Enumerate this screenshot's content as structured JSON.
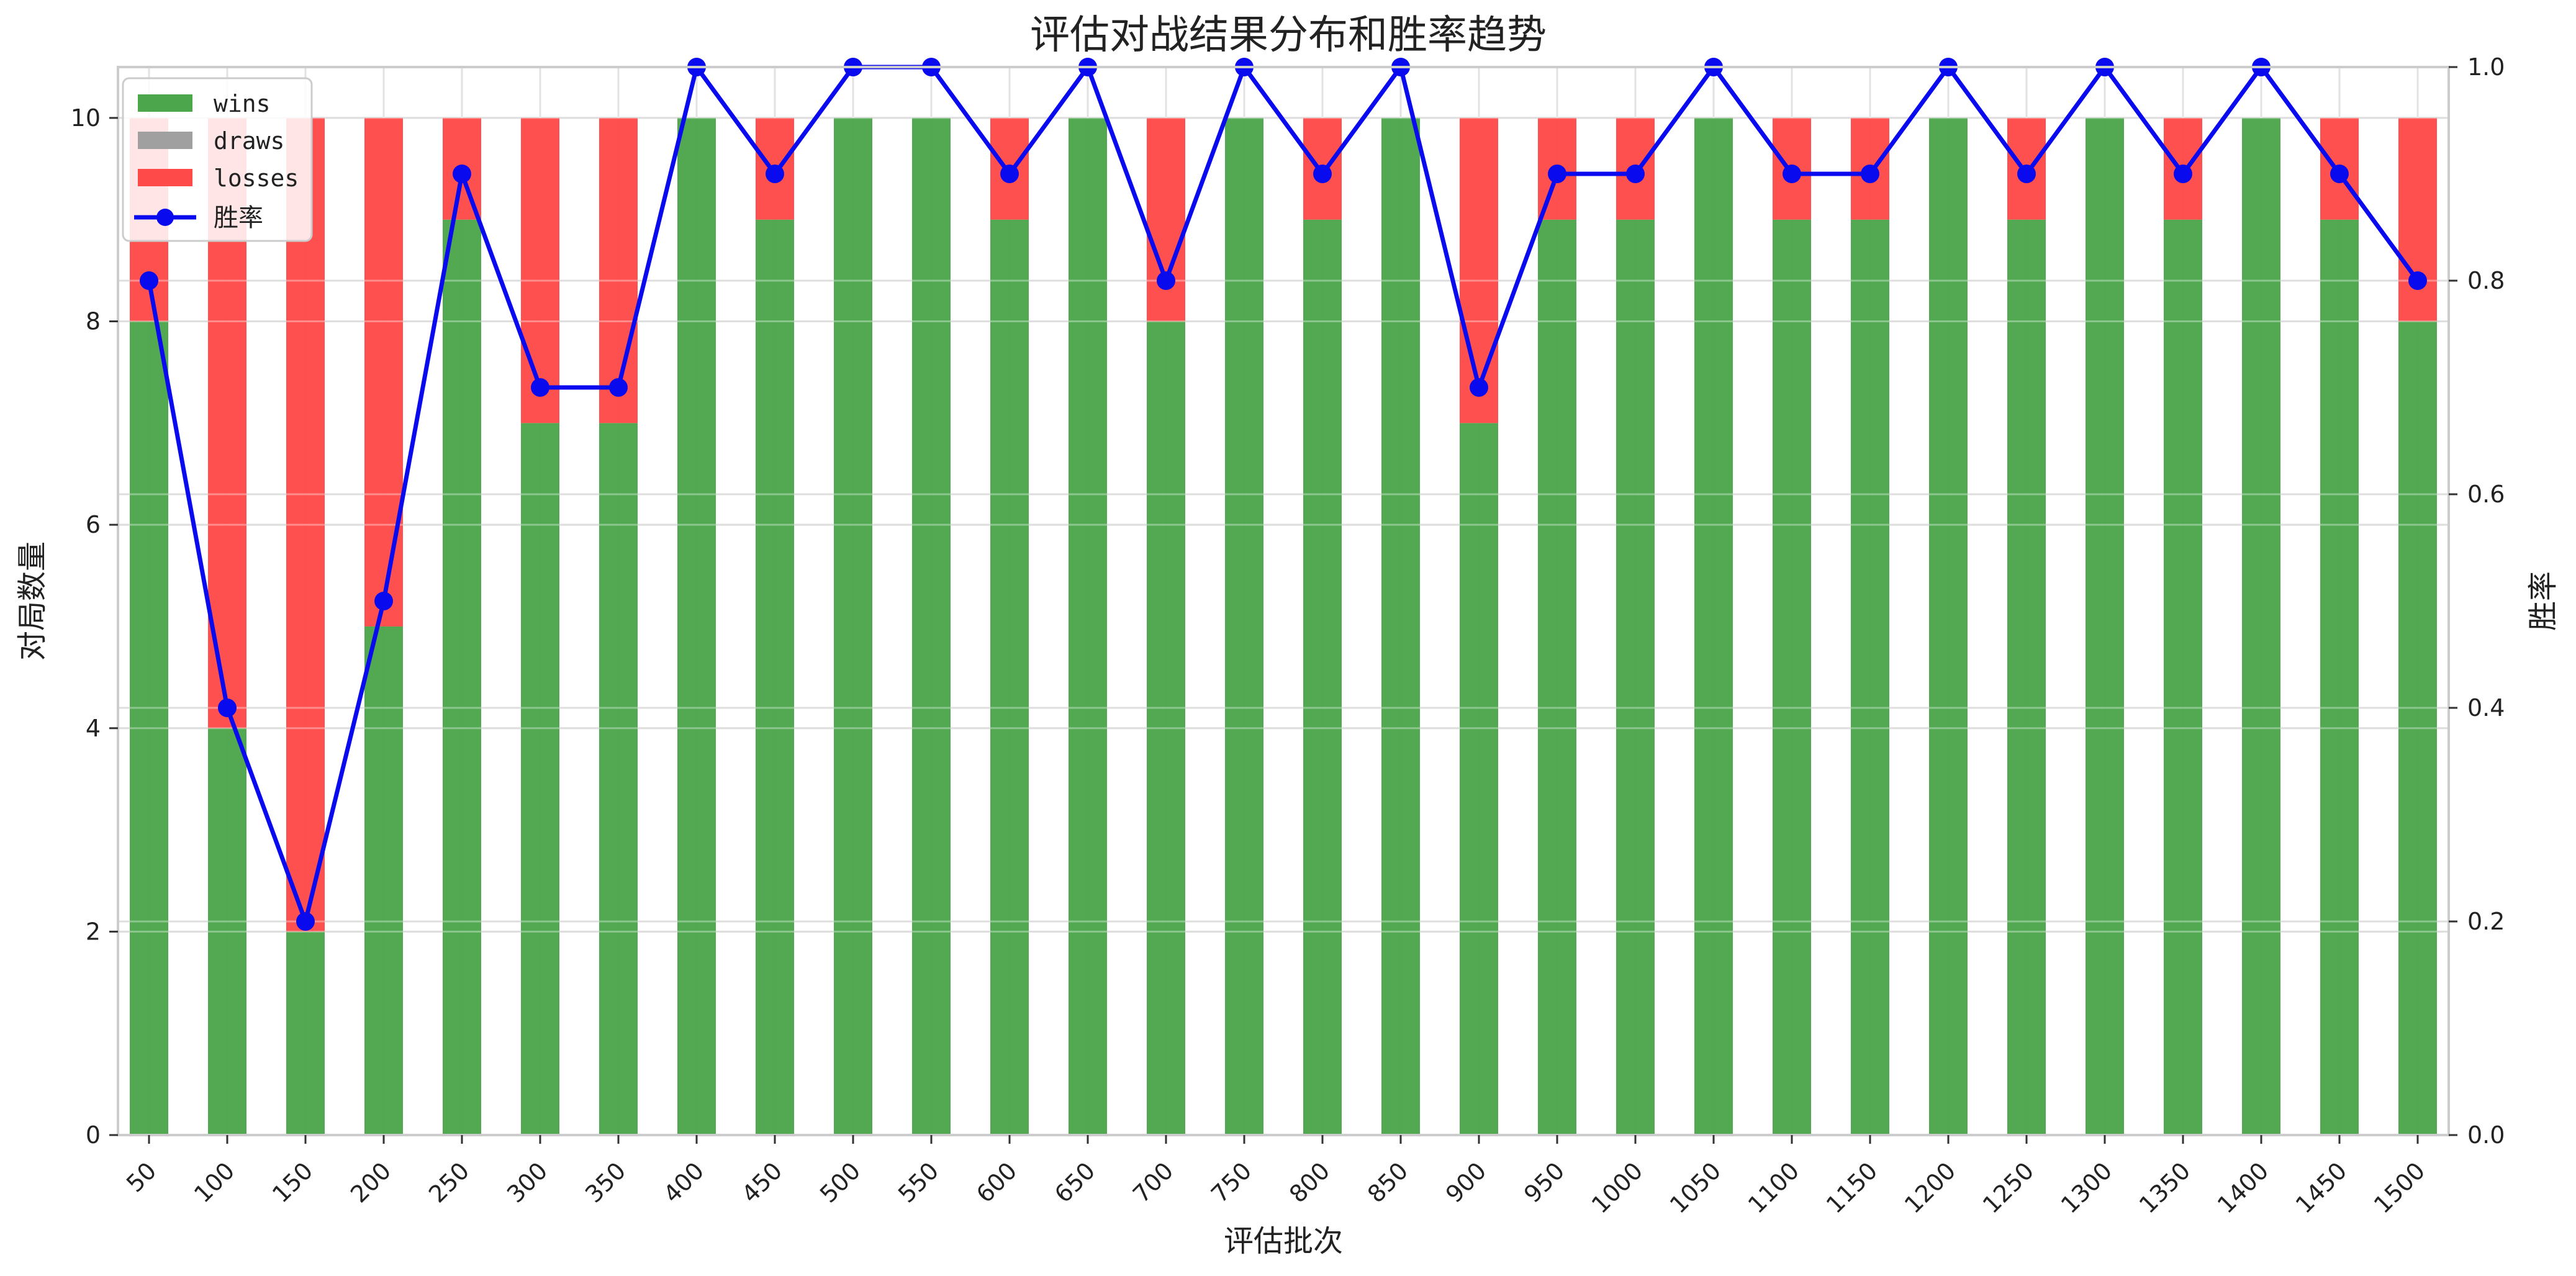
{
  "chart_data": {
    "type": "bar",
    "title": "评估对战结果分布和胜率趋势",
    "xlabel": "评估批次",
    "ylabel": "对局数量",
    "y2label": "胜率",
    "ylim": [
      0,
      10.5
    ],
    "y2lim": [
      0,
      1.0
    ],
    "yticks": [
      "0",
      "2",
      "4",
      "6",
      "8",
      "10"
    ],
    "y2ticks": [
      "0.0",
      "0.2",
      "0.4",
      "0.6",
      "0.8",
      "1.0"
    ],
    "grid": true,
    "legend_position": "top-left",
    "categories": [
      "50",
      "100",
      "150",
      "200",
      "250",
      "300",
      "350",
      "400",
      "450",
      "500",
      "550",
      "600",
      "650",
      "700",
      "750",
      "800",
      "850",
      "900",
      "950",
      "1000",
      "1050",
      "1100",
      "1150",
      "1200",
      "1250",
      "1300",
      "1350",
      "1400",
      "1450",
      "1500"
    ],
    "series": [
      {
        "name": "wins",
        "kind": "stacked-bar",
        "color": "#4ca64c",
        "values": [
          8,
          4,
          2,
          5,
          9,
          7,
          7,
          10,
          9,
          10,
          10,
          9,
          10,
          8,
          10,
          9,
          10,
          7,
          9,
          9,
          10,
          9,
          9,
          10,
          9,
          10,
          9,
          10,
          9,
          8
        ]
      },
      {
        "name": "draws",
        "kind": "stacked-bar",
        "color": "#a0a0a0",
        "values": [
          0,
          0,
          0,
          0,
          0,
          0,
          0,
          0,
          0,
          0,
          0,
          0,
          0,
          0,
          0,
          0,
          0,
          0,
          0,
          0,
          0,
          0,
          0,
          0,
          0,
          0,
          0,
          0,
          0,
          0
        ]
      },
      {
        "name": "losses",
        "kind": "stacked-bar",
        "color": "#ff4a4a",
        "values": [
          2,
          6,
          8,
          5,
          1,
          3,
          3,
          0,
          1,
          0,
          0,
          1,
          0,
          2,
          0,
          1,
          0,
          3,
          1,
          1,
          0,
          1,
          1,
          0,
          1,
          0,
          1,
          0,
          1,
          2
        ]
      },
      {
        "name": "胜率",
        "kind": "line",
        "axis": "right",
        "color": "#0a0aee",
        "values": [
          0.8,
          0.4,
          0.2,
          0.5,
          0.9,
          0.7,
          0.7,
          1.0,
          0.9,
          1.0,
          1.0,
          0.9,
          1.0,
          0.8,
          1.0,
          0.9,
          1.0,
          0.7,
          0.9,
          0.9,
          1.0,
          0.9,
          0.9,
          1.0,
          0.9,
          1.0,
          0.9,
          1.0,
          0.9,
          0.8
        ]
      }
    ]
  }
}
